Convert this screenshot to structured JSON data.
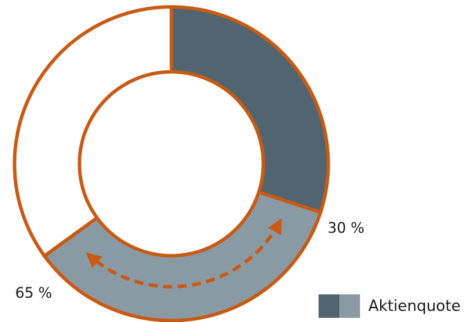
{
  "chart_data": {
    "type": "pie",
    "variant": "donut",
    "segments": [
      {
        "label": "30 %",
        "value": 30,
        "color": "#506570"
      },
      {
        "label": "",
        "value": 35,
        "color": "#8a9aa4"
      },
      {
        "label": "",
        "value": 35,
        "color": "#ffffff"
      }
    ],
    "annotations": [
      "30 %",
      "65 %"
    ],
    "arrow": {
      "between_percent": [
        30,
        65
      ],
      "direction": "both",
      "style": "dashed",
      "color": "#c85a14"
    },
    "outline_color": "#c85a14",
    "legend": {
      "label": "Aktienquote",
      "colors": [
        "#506570",
        "#8a9aa4"
      ],
      "placement": "bottom-right"
    }
  }
}
